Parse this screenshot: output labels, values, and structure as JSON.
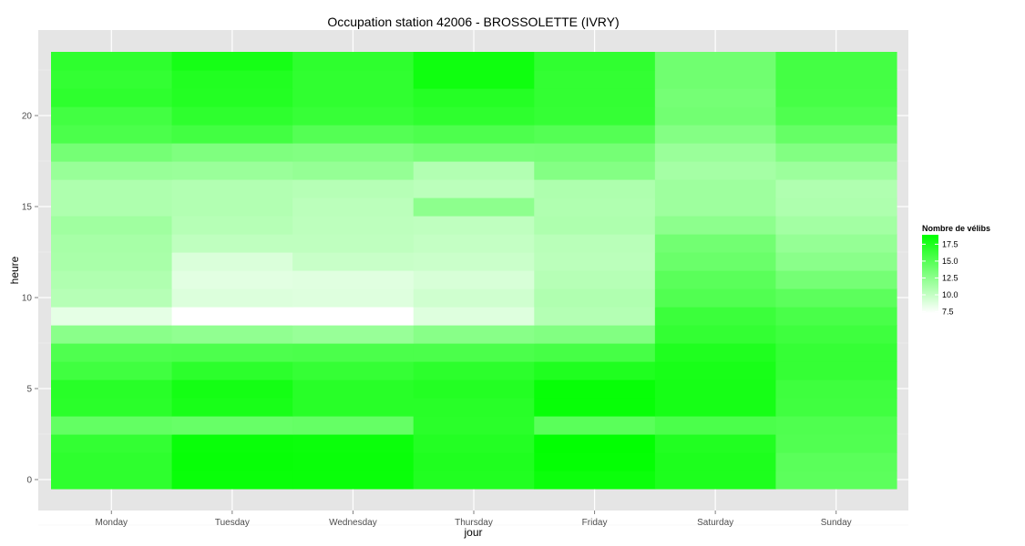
{
  "chart_data": {
    "type": "heatmap",
    "title": "Occupation station 42006 - BROSSOLETTE (IVRY)",
    "xlabel": "jour",
    "ylabel": "heure",
    "x": [
      "Monday",
      "Tuesday",
      "Wednesday",
      "Thursday",
      "Friday",
      "Saturday",
      "Sunday"
    ],
    "y": [
      0,
      1,
      2,
      3,
      4,
      5,
      6,
      7,
      8,
      9,
      10,
      11,
      12,
      13,
      14,
      15,
      16,
      17,
      18,
      19,
      20,
      21,
      22,
      23
    ],
    "ylim": [
      -0.5,
      23.5
    ],
    "y_ticks": [
      0,
      5,
      10,
      15,
      20
    ],
    "values": [
      [
        16.8,
        18.5,
        18.5,
        17.4,
        18.4,
        17.6,
        14.7
      ],
      [
        16.8,
        18.6,
        18.5,
        17.5,
        18.7,
        17.6,
        14.8
      ],
      [
        16.6,
        18.5,
        18.4,
        17.3,
        18.8,
        17.4,
        15.2
      ],
      [
        14.4,
        14.2,
        14.3,
        17.0,
        14.8,
        15.5,
        15.3
      ],
      [
        17.0,
        17.8,
        17.1,
        17.1,
        18.6,
        17.9,
        16.0
      ],
      [
        17.1,
        18.0,
        17.1,
        17.3,
        18.6,
        17.9,
        16.1
      ],
      [
        16.0,
        16.9,
        16.5,
        16.9,
        17.5,
        17.8,
        16.5
      ],
      [
        15.3,
        15.4,
        15.5,
        15.5,
        15.7,
        17.5,
        16.5
      ],
      [
        12.6,
        12.3,
        12.0,
        12.7,
        13.0,
        16.6,
        16.1
      ],
      [
        8.5,
        7.3,
        7.3,
        8.8,
        10.7,
        16.2,
        15.6
      ],
      [
        10.6,
        8.9,
        8.8,
        9.5,
        10.9,
        15.2,
        14.7
      ],
      [
        10.9,
        8.6,
        8.7,
        9.1,
        10.6,
        14.8,
        13.6
      ],
      [
        11.2,
        9.0,
        9.8,
        9.7,
        10.4,
        14.1,
        12.6
      ],
      [
        11.3,
        10.2,
        10.2,
        10.0,
        10.5,
        13.7,
        12.1
      ],
      [
        11.6,
        10.6,
        10.3,
        10.2,
        11.0,
        12.5,
        11.5
      ],
      [
        11.0,
        10.8,
        10.4,
        12.5,
        10.9,
        11.7,
        11.0
      ],
      [
        11.0,
        10.8,
        10.6,
        10.4,
        11.0,
        11.7,
        10.9
      ],
      [
        12.0,
        11.9,
        12.1,
        10.8,
        12.9,
        11.4,
        11.8
      ],
      [
        13.6,
        13.1,
        13.0,
        13.5,
        13.6,
        11.9,
        13.0
      ],
      [
        15.5,
        15.9,
        15.1,
        15.4,
        15.1,
        12.9,
        14.3
      ],
      [
        15.9,
        16.8,
        16.4,
        16.8,
        16.5,
        13.7,
        15.3
      ],
      [
        16.8,
        17.3,
        16.7,
        17.2,
        16.6,
        13.6,
        15.7
      ],
      [
        16.6,
        17.4,
        16.7,
        18.2,
        16.6,
        13.8,
        15.8
      ],
      [
        16.8,
        17.9,
        16.8,
        18.2,
        16.7,
        13.8,
        15.8
      ]
    ],
    "color_scale": {
      "low": "#ffffff",
      "high": "#00ff00",
      "min": 7.3,
      "max": 18.9
    },
    "legend": {
      "title": "Nombre de vélibs",
      "placement": "right",
      "breaks": [
        7.5,
        10,
        12.5,
        15,
        17.5
      ],
      "labels": [
        "7.5",
        "10.0",
        "12.5",
        "15.0",
        "17.5"
      ]
    },
    "grid": true,
    "panel_background": "#e5e5e5"
  }
}
